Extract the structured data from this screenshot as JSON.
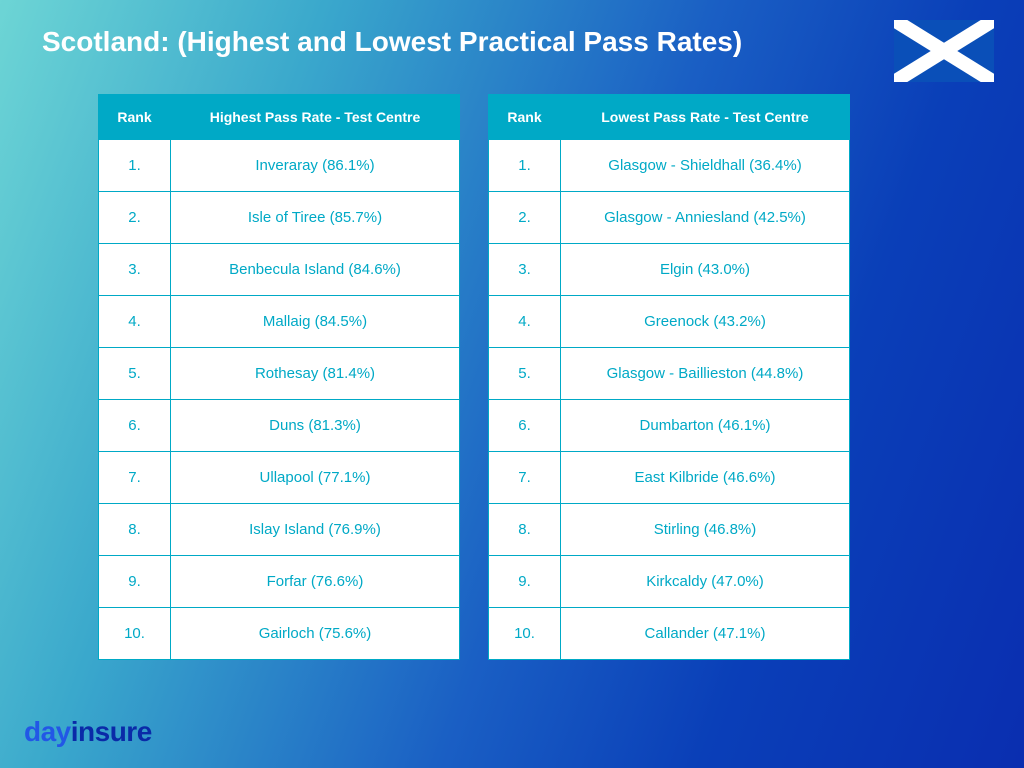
{
  "title": "Scotland: (Highest and Lowest Practical Pass Rates)",
  "flag": {
    "bg_color": "#0a4fb8",
    "cross_color": "#ffffff"
  },
  "tables": {
    "header_bg": "#00a9c6",
    "header_text_color": "#ffffff",
    "cell_text_color": "#00a9c6",
    "cell_bg": "#ffffff",
    "border_color": "#00a9c6",
    "highest": {
      "rank_header": "Rank",
      "centre_header": "Highest Pass  Rate - Test Centre",
      "rows": [
        {
          "rank": "1.",
          "centre": "Inveraray (86.1%)"
        },
        {
          "rank": "2.",
          "centre": "Isle of Tiree (85.7%)"
        },
        {
          "rank": "3.",
          "centre": "Benbecula Island (84.6%)"
        },
        {
          "rank": "4.",
          "centre": "Mallaig (84.5%)"
        },
        {
          "rank": "5.",
          "centre": "Rothesay (81.4%)"
        },
        {
          "rank": "6.",
          "centre": "Duns (81.3%)"
        },
        {
          "rank": "7.",
          "centre": "Ullapool (77.1%)"
        },
        {
          "rank": "8.",
          "centre": "Islay Island (76.9%)"
        },
        {
          "rank": "9.",
          "centre": "Forfar (76.6%)"
        },
        {
          "rank": "10.",
          "centre": "Gairloch (75.6%)"
        }
      ]
    },
    "lowest": {
      "rank_header": "Rank",
      "centre_header": "Lowest Pass Rate - Test Centre",
      "rows": [
        {
          "rank": "1.",
          "centre": "Glasgow - Shieldhall (36.4%)"
        },
        {
          "rank": "2.",
          "centre": "Glasgow - Anniesland (42.5%)"
        },
        {
          "rank": "3.",
          "centre": "Elgin (43.0%)"
        },
        {
          "rank": "4.",
          "centre": "Greenock (43.2%)"
        },
        {
          "rank": "5.",
          "centre": "Glasgow - Baillieston (44.8%)"
        },
        {
          "rank": "6.",
          "centre": "Dumbarton (46.1%)"
        },
        {
          "rank": "7.",
          "centre": "East Kilbride (46.6%)"
        },
        {
          "rank": "8.",
          "centre": "Stirling (46.8%)"
        },
        {
          "rank": "9.",
          "centre": "Kirkcaldy (47.0%)"
        },
        {
          "rank": "10.",
          "centre": "Callander (47.1%)"
        }
      ]
    }
  },
  "brand": {
    "part1": "day",
    "part2": "insure"
  }
}
